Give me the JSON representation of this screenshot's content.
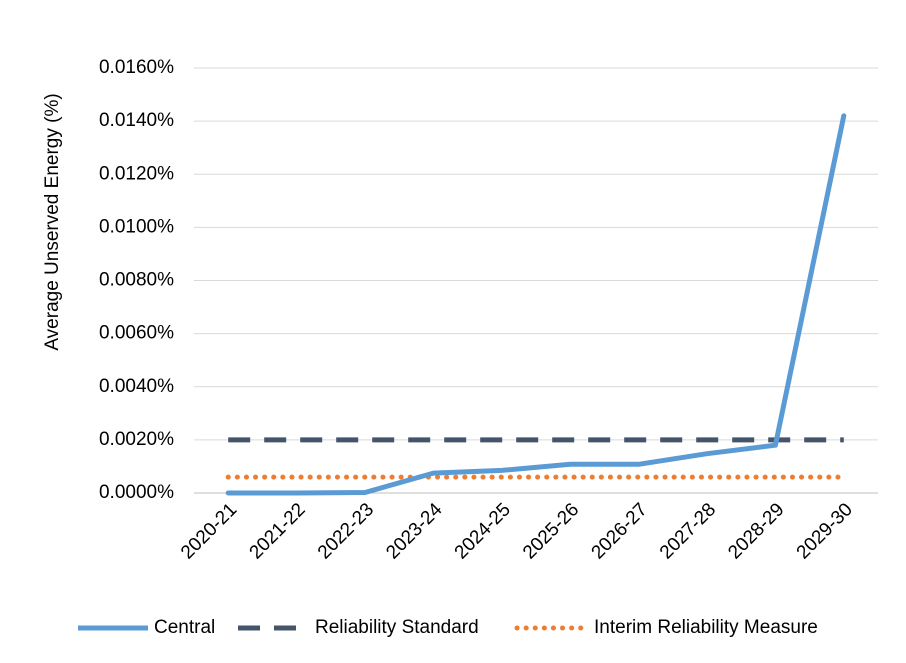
{
  "chart_data": {
    "type": "line",
    "title": "",
    "xlabel": "",
    "ylabel": "Average Unserved Energy (%)",
    "categories": [
      "2020-21",
      "2021-22",
      "2022-23",
      "2023-24",
      "2024-25",
      "2025-26",
      "2026-27",
      "2027-28",
      "2028-29",
      "2029-30"
    ],
    "ylim": [
      0,
      0.016
    ],
    "yticks": [
      0,
      0.002,
      0.004,
      0.006,
      0.008,
      0.01,
      0.012,
      0.014,
      0.016
    ],
    "ytick_labels": [
      "0.0000%",
      "0.0020%",
      "0.0040%",
      "0.0060%",
      "0.0080%",
      "0.0100%",
      "0.0120%",
      "0.0140%",
      "0.0160%"
    ],
    "grid": true,
    "legend_position": "bottom",
    "series": [
      {
        "name": "Central",
        "style": "solid",
        "color": "#5B9BD5",
        "values": [
          0.0,
          0.0,
          2e-05,
          0.00075,
          0.00085,
          0.00108,
          0.00108,
          0.00148,
          0.0018,
          0.0142
        ]
      },
      {
        "name": "Reliability Standard",
        "style": "dashed",
        "color": "#44546A",
        "values": [
          0.002,
          0.002,
          0.002,
          0.002,
          0.002,
          0.002,
          0.002,
          0.002,
          0.002,
          0.002
        ]
      },
      {
        "name": "Interim Reliability Measure",
        "style": "dotted",
        "color": "#ED7D31",
        "values": [
          0.0006,
          0.0006,
          0.0006,
          0.0006,
          0.0006,
          0.0006,
          0.0006,
          0.0006,
          0.0006,
          0.0006
        ]
      }
    ]
  }
}
